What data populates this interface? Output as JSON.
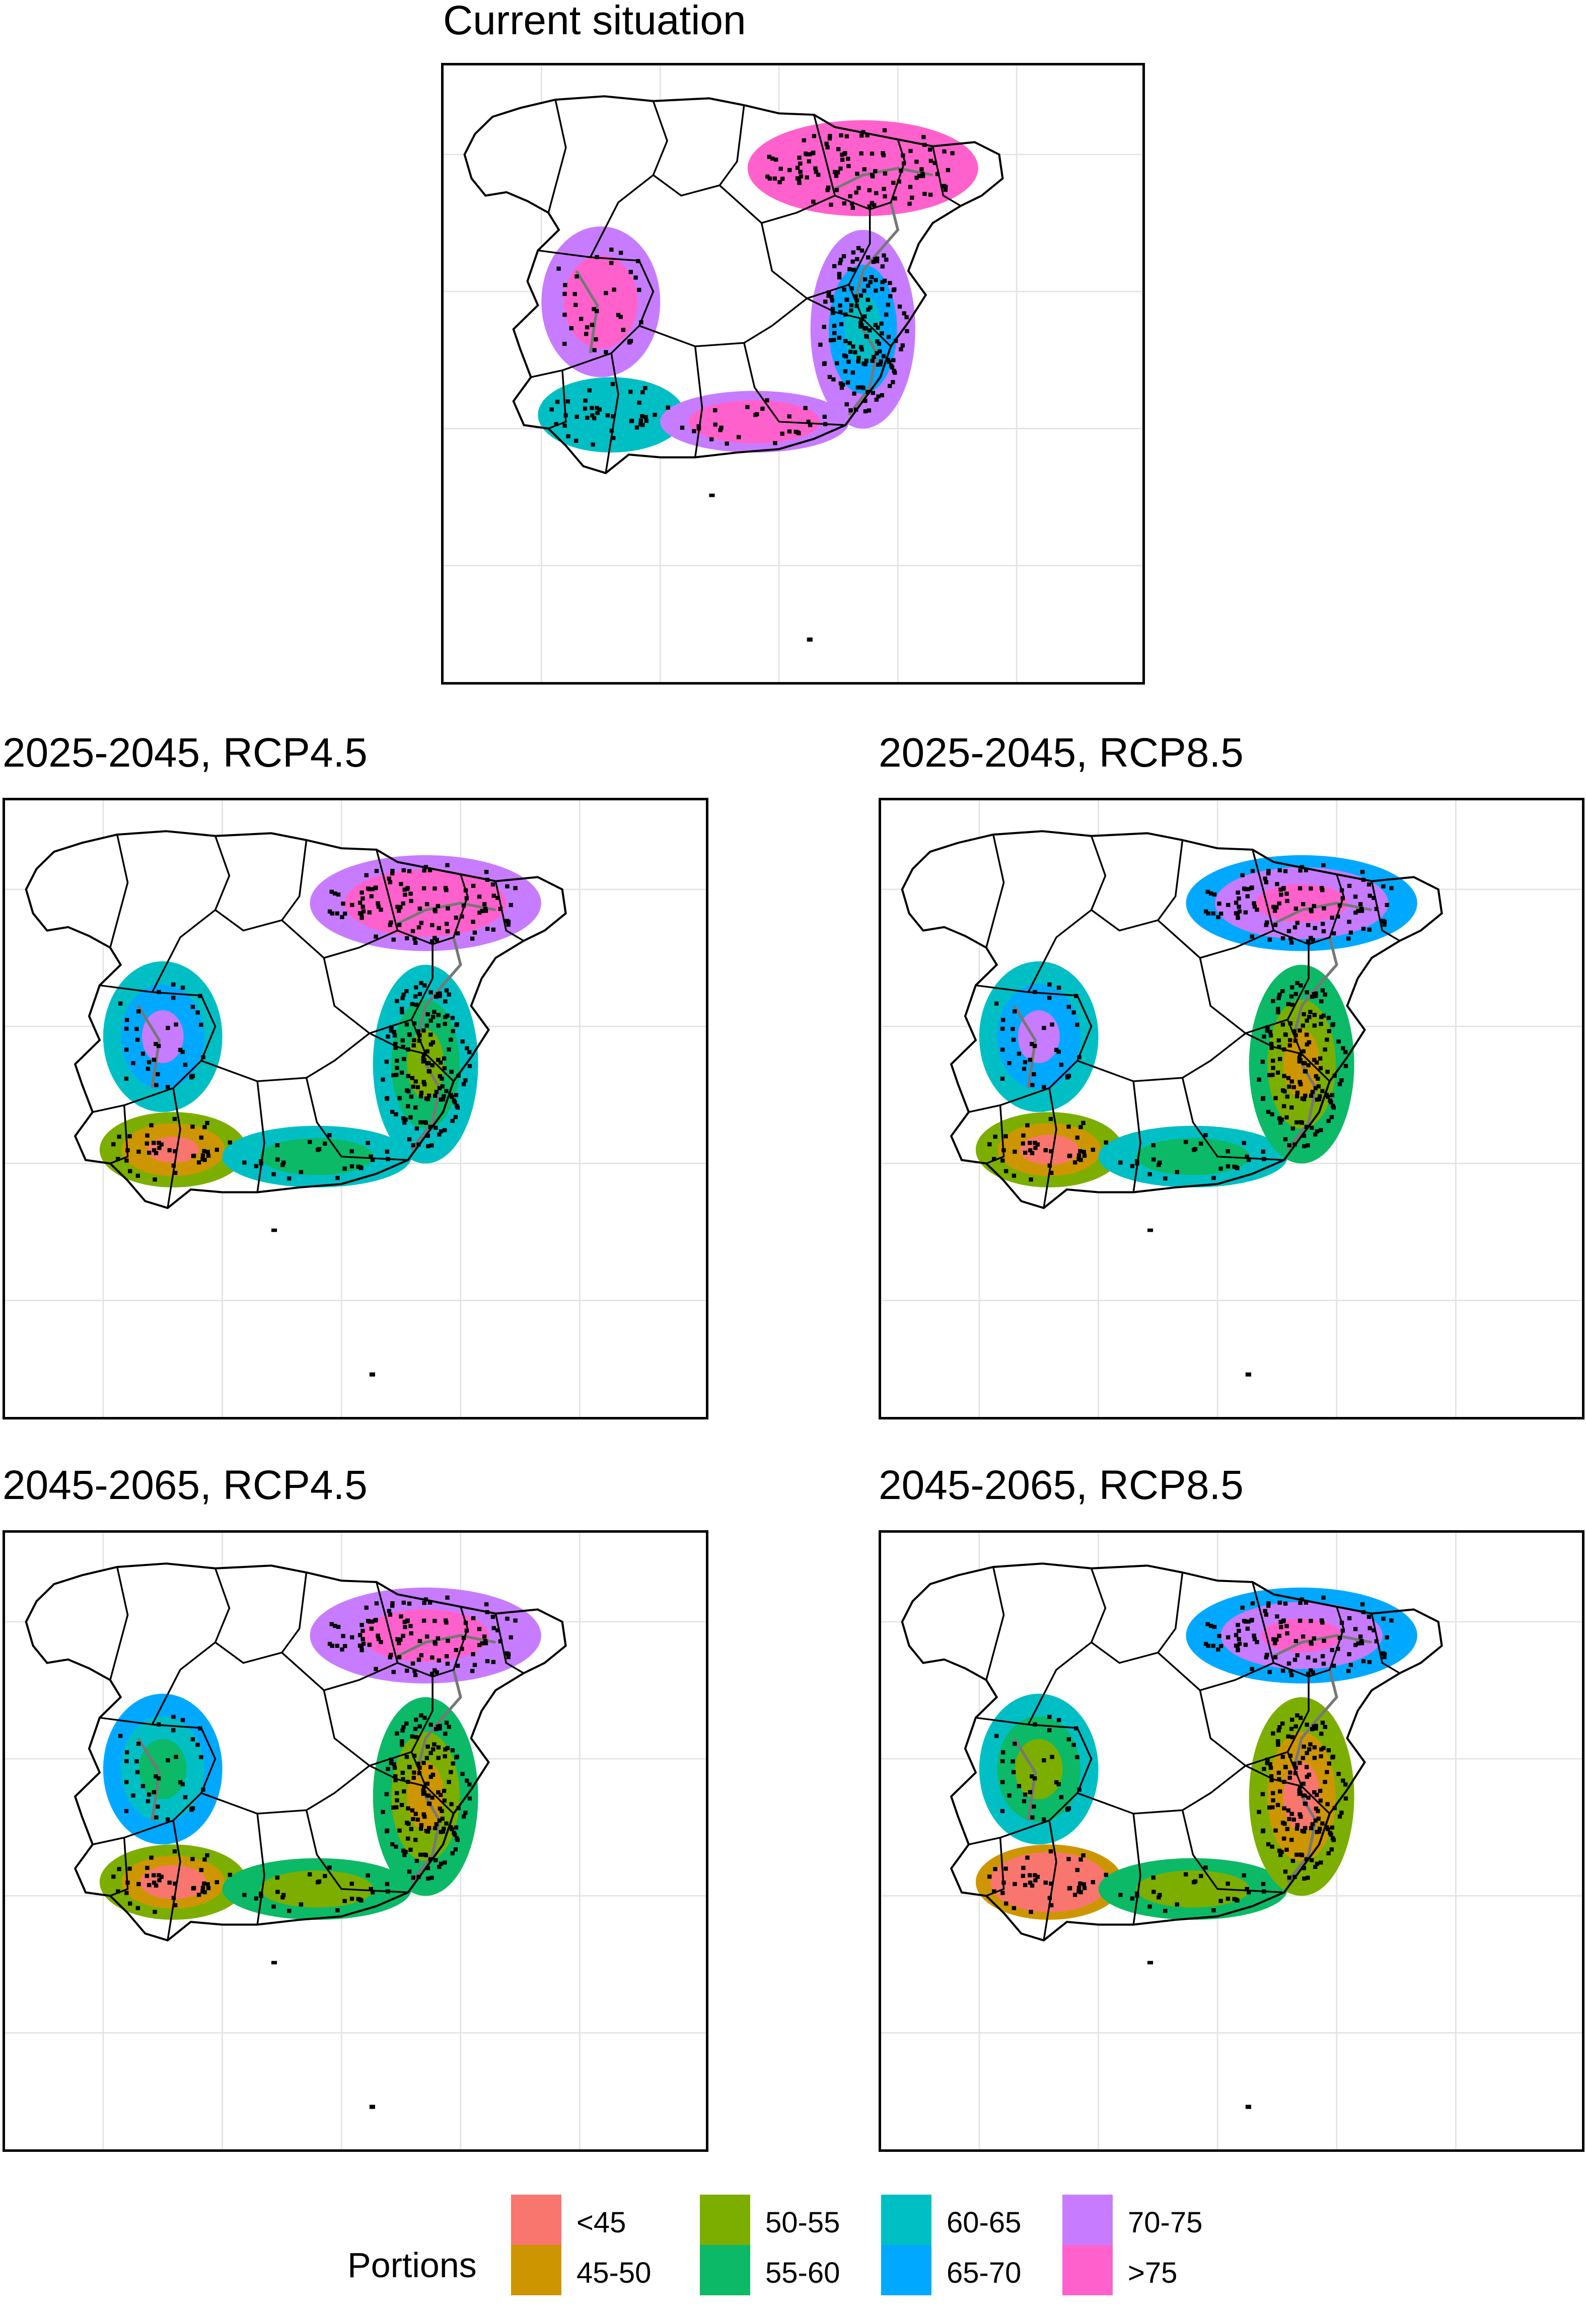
{
  "panels": [
    {
      "id": "current",
      "title": "Current situation"
    },
    {
      "id": "p2025_45",
      "title": "2025-2045, RCP4.5"
    },
    {
      "id": "p2025_85",
      "title": "2025-2045, RCP8.5"
    },
    {
      "id": "p2045_45",
      "title": "2045-2065, RCP4.5"
    },
    {
      "id": "p2045_85",
      "title": "2045-2065, RCP8.5"
    }
  ],
  "legend": {
    "title": "Portions",
    "items": [
      {
        "label": "<45",
        "color": "#f8766d"
      },
      {
        "label": "45-50",
        "color": "#cd9600"
      },
      {
        "label": "50-55",
        "color": "#7cae00"
      },
      {
        "label": "55-60",
        "color": "#0cb966"
      },
      {
        "label": "60-65",
        "color": "#00bfc4"
      },
      {
        "label": "65-70",
        "color": "#00a9ff"
      },
      {
        "label": "70-75",
        "color": "#c77cff"
      },
      {
        "label": ">75",
        "color": "#ff61cc"
      }
    ]
  }
}
